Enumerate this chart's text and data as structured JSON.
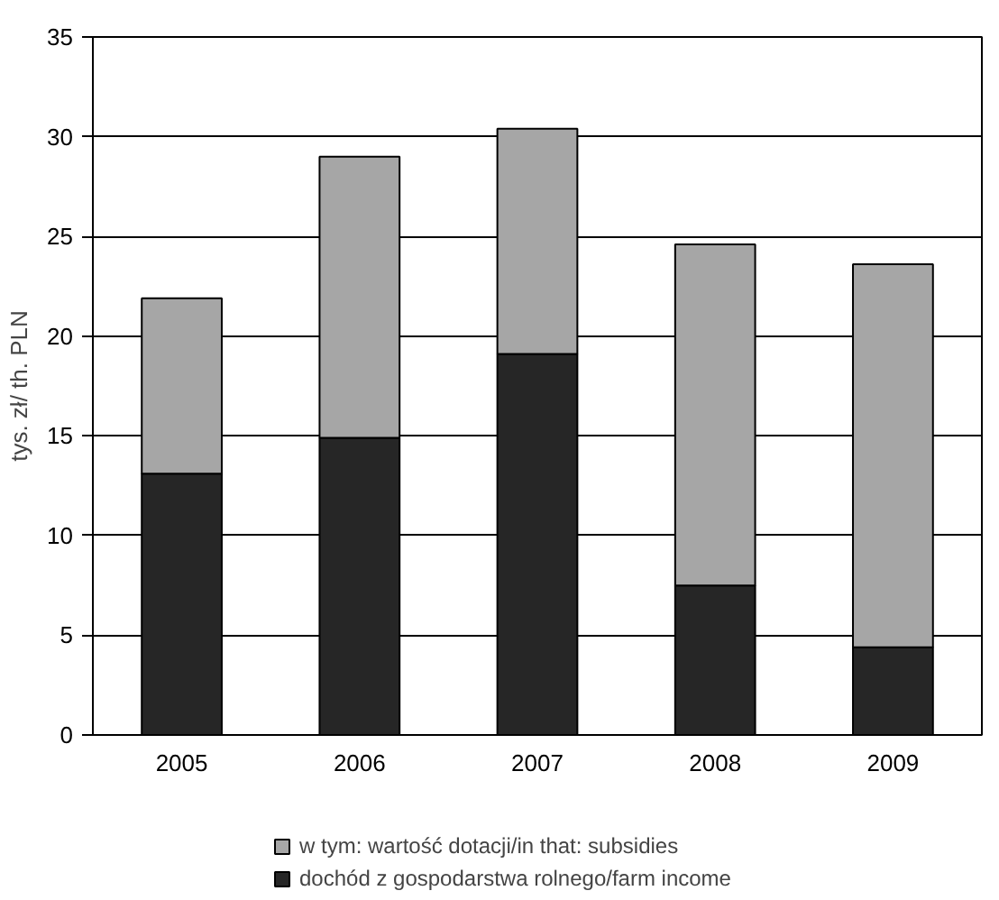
{
  "chart_data": {
    "type": "bar",
    "ylabel": "tys. zł/ th. PLN",
    "stacked": true,
    "categories": [
      "2005",
      "2006",
      "2007",
      "2008",
      "2009"
    ],
    "series": [
      {
        "name": "dochód z gospodarstwa rolnego/farm income",
        "color": "#262626",
        "values": [
          13.1,
          14.9,
          19.1,
          7.5,
          4.4
        ]
      },
      {
        "name": "w tym: wartość dotacji/in that: subsidies",
        "color": "#a6a6a6",
        "values": [
          8.8,
          14.1,
          11.3,
          17.1,
          19.2
        ]
      }
    ],
    "ylim": [
      0,
      35
    ],
    "yticks": [
      0,
      5,
      10,
      15,
      20,
      25,
      30,
      35
    ],
    "grid": "y",
    "legend": "bottom"
  }
}
